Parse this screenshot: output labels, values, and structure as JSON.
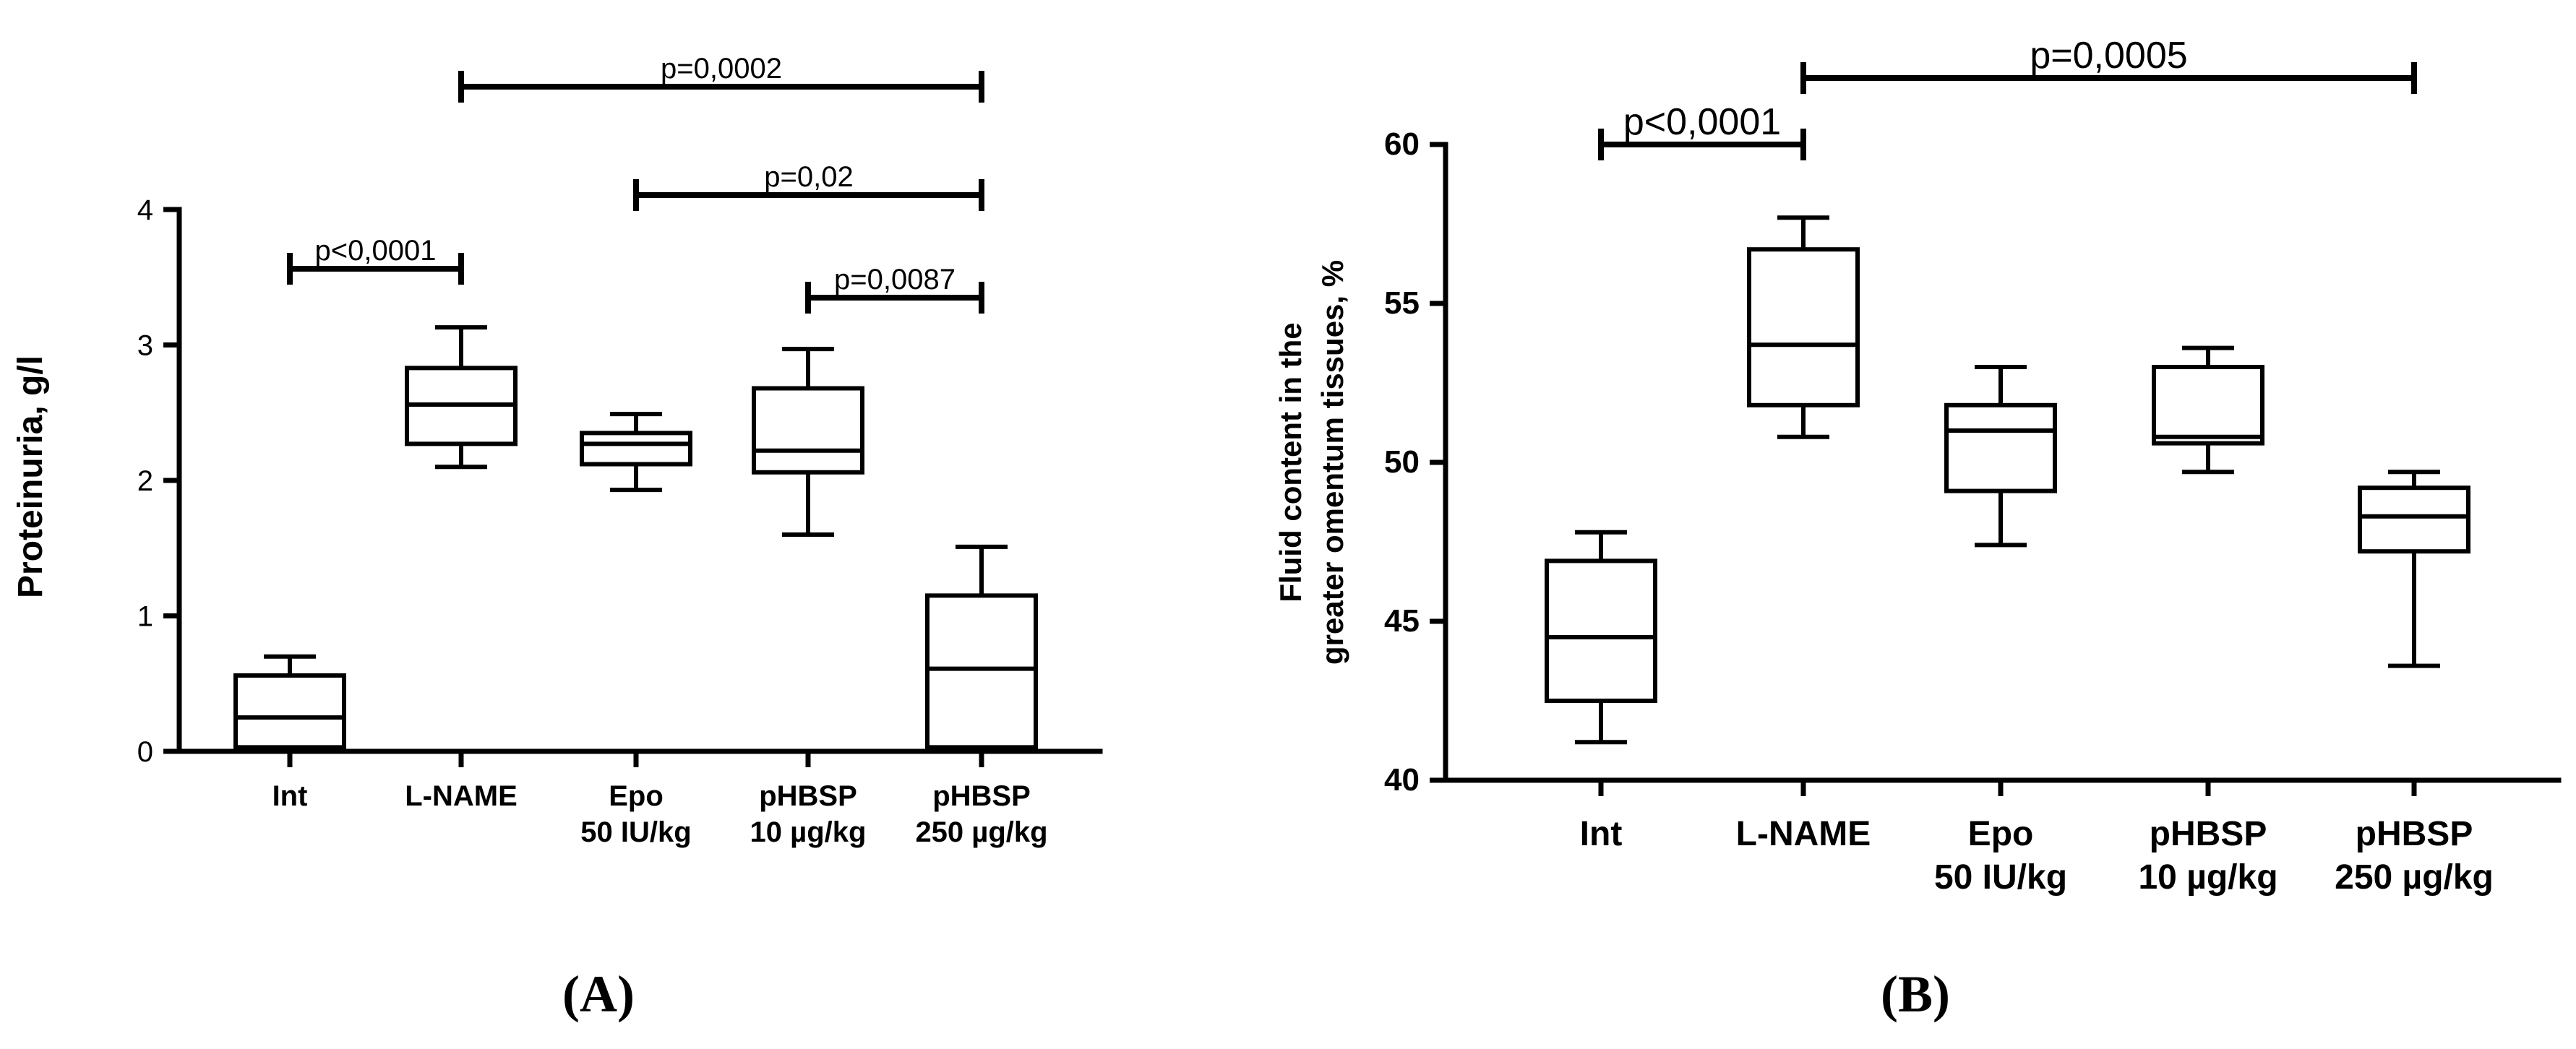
{
  "chart_data": [
    {
      "type": "box",
      "panel_label": "(A)",
      "ylabel": "Proteinuria, g/l",
      "ylim": [
        0,
        4
      ],
      "yticks": [
        "0",
        "1",
        "2",
        "3",
        "4"
      ],
      "categories": [
        [
          "Int"
        ],
        [
          "L-NAME"
        ],
        [
          "Epo",
          "50 IU/kg"
        ],
        [
          "pHBSP",
          "10 µg/kg"
        ],
        [
          "pHBSP",
          "250 µg/kg"
        ]
      ],
      "boxes": [
        {
          "min": 0.0,
          "q1": 0.03,
          "median": 0.25,
          "q3": 0.56,
          "max": 0.7
        },
        {
          "min": 2.1,
          "q1": 2.27,
          "median": 2.56,
          "q3": 2.83,
          "max": 3.13
        },
        {
          "min": 1.93,
          "q1": 2.12,
          "median": 2.27,
          "q3": 2.35,
          "max": 2.49
        },
        {
          "min": 1.6,
          "q1": 2.06,
          "median": 2.22,
          "q3": 2.68,
          "max": 2.97
        },
        {
          "min": 0.0,
          "q1": 0.03,
          "median": 0.61,
          "q3": 1.15,
          "max": 1.51
        }
      ],
      "comparisons": [
        {
          "from": 0,
          "to": 1,
          "label": "p<0,0001"
        },
        {
          "from": 1,
          "to": 4,
          "label": "p=0,0002"
        },
        {
          "from": 2,
          "to": 4,
          "label": "p=0,02"
        },
        {
          "from": 3,
          "to": 4,
          "label": "p=0,0087"
        }
      ]
    },
    {
      "type": "box",
      "panel_label": "(B)",
      "ylabel": [
        "Fluid content in the",
        "greater omentum tissues, %"
      ],
      "ylim": [
        40,
        60
      ],
      "yticks": [
        "40",
        "45",
        "50",
        "55",
        "60"
      ],
      "categories": [
        [
          "Int"
        ],
        [
          "L-NAME"
        ],
        [
          "Epo",
          "50 IU/kg"
        ],
        [
          "pHBSP",
          "10 µg/kg"
        ],
        [
          "pHBSP",
          "250 µg/kg"
        ]
      ],
      "boxes": [
        {
          "min": 41.2,
          "q1": 42.5,
          "median": 44.5,
          "q3": 46.9,
          "max": 47.8
        },
        {
          "min": 50.8,
          "q1": 51.8,
          "median": 53.7,
          "q3": 56.7,
          "max": 57.7
        },
        {
          "min": 47.4,
          "q1": 49.1,
          "median": 51.0,
          "q3": 51.8,
          "max": 53.0
        },
        {
          "min": 49.7,
          "q1": 50.6,
          "median": 50.8,
          "q3": 53.0,
          "max": 53.6
        },
        {
          "min": 43.6,
          "q1": 47.2,
          "median": 48.3,
          "q3": 49.2,
          "max": 49.7
        }
      ],
      "comparisons": [
        {
          "from": 0,
          "to": 1,
          "label": "p<0,0001"
        },
        {
          "from": 1,
          "to": 4,
          "label": "p=0,0005"
        }
      ]
    }
  ]
}
